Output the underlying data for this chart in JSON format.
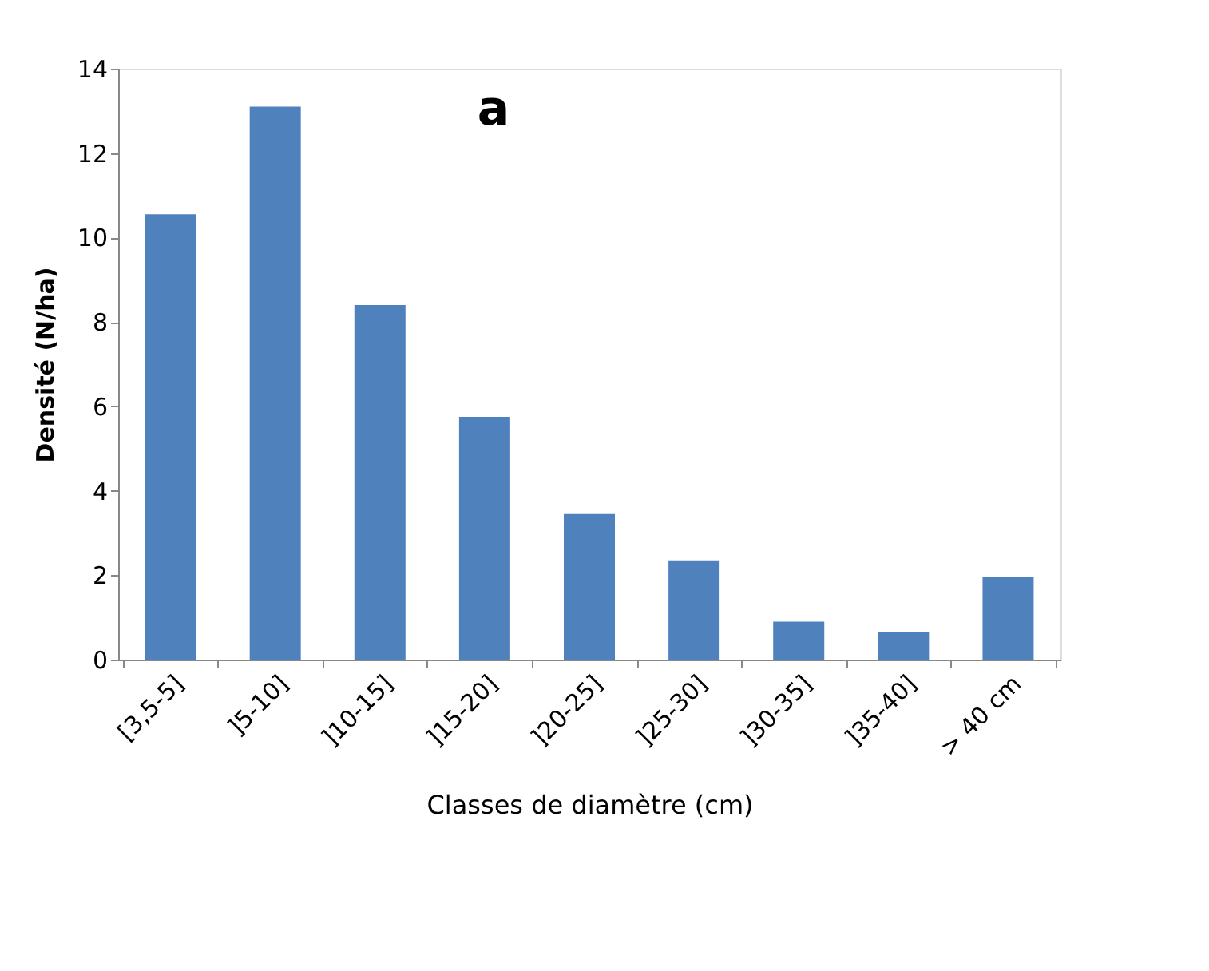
{
  "chart_data": {
    "type": "bar",
    "title": "a",
    "xlabel": "Classes de diamètre (cm)",
    "ylabel": "Densité (N/ha)",
    "categories": [
      "[3,5-5]",
      "]5-10]",
      "]10-15]",
      "]15-20]",
      "]20-25]",
      "]25-30]",
      "]30-35]",
      "]35-40]",
      "> 40 cm"
    ],
    "values": [
      10.55,
      13.1,
      8.4,
      5.75,
      3.45,
      2.35,
      0.9,
      0.65,
      1.95
    ],
    "color": "#4f81bd",
    "ylim": [
      0,
      14
    ],
    "yticks": [
      0,
      2,
      4,
      6,
      8,
      10,
      12,
      14
    ],
    "grid": false
  }
}
